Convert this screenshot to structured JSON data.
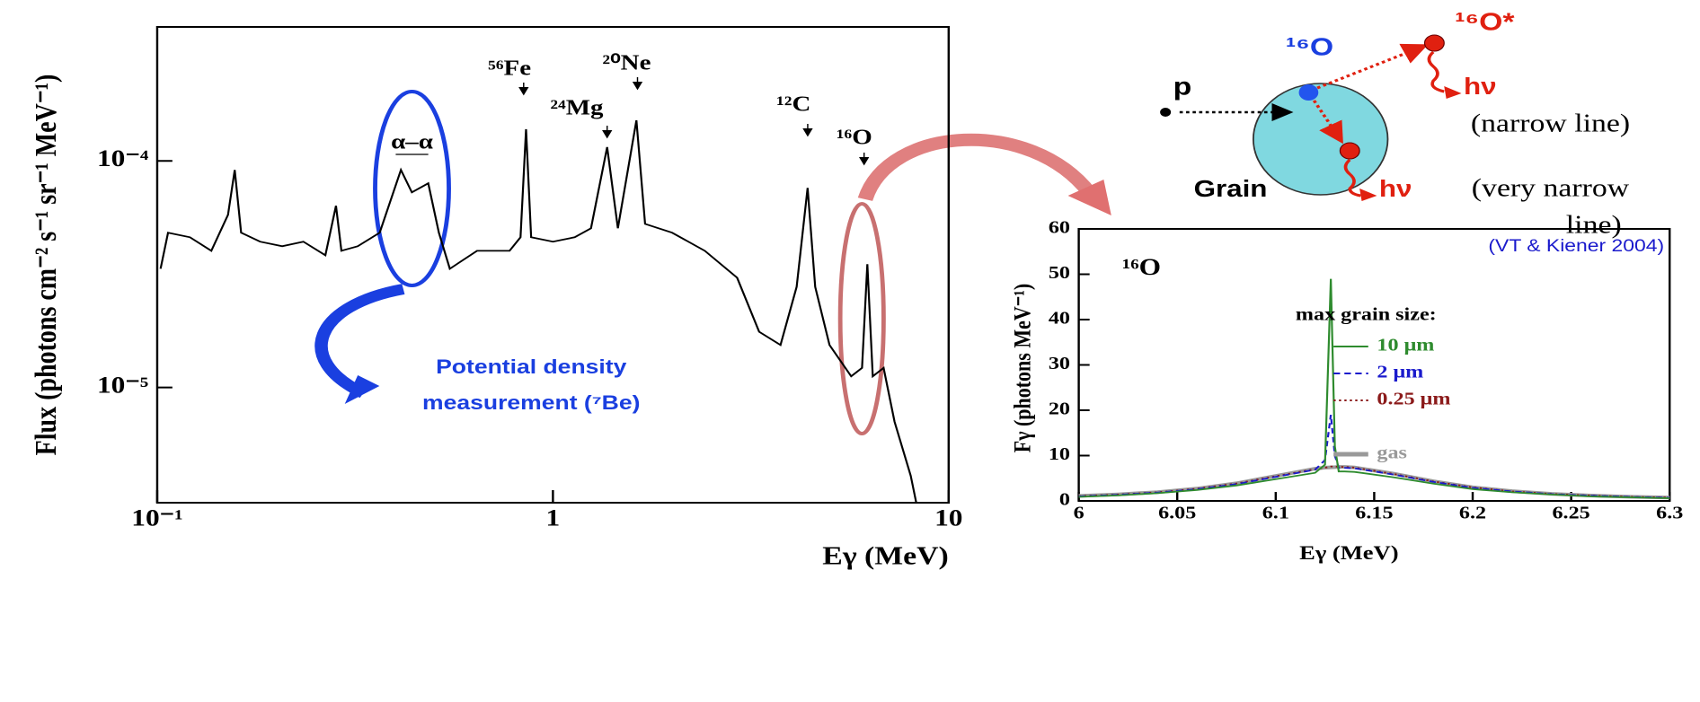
{
  "chart_data": [
    {
      "type": "line",
      "xlog": true,
      "ylog": true,
      "color": "#000000",
      "xlabel": "Eγ (MeV)",
      "ylabel": "Flux (photons cm⁻² s⁻¹ sr⁻¹ MeV⁻¹)",
      "x": [
        0.102,
        0.1065,
        0.121,
        0.137,
        0.151,
        0.157,
        0.163,
        0.182,
        0.207,
        0.234,
        0.266,
        0.283,
        0.292,
        0.321,
        0.365,
        0.413,
        0.44,
        0.484,
        0.515,
        0.549,
        0.643,
        0.777,
        0.828,
        0.855,
        0.881,
        1.0,
        1.135,
        1.248,
        1.371,
        1.459,
        1.625,
        1.709,
        2.0,
        2.42,
        2.92,
        3.32,
        3.76,
        4.13,
        4.4,
        4.6,
        5.0,
        5.67,
        6.04,
        6.23,
        6.43,
        6.85,
        7.3,
        8.02,
        8.28
      ],
      "values": [
        3.34e-05,
        4.82e-05,
        4.6e-05,
        4.01e-05,
        5.78e-05,
        9.12e-05,
        4.82e-05,
        4.4e-05,
        4.2e-05,
        4.4e-05,
        3.83e-05,
        6.34e-05,
        4.01e-05,
        4.2e-05,
        4.82e-05,
        9.12e-05,
        7.26e-05,
        7.96e-05,
        4.82e-05,
        3.34e-05,
        4.01e-05,
        4.01e-05,
        4.6e-05,
        0.000138,
        4.6e-05,
        4.4e-05,
        4.6e-05,
        5.04e-05,
        0.000115,
        5.04e-05,
        0.000151,
        5.27e-05,
        4.82e-05,
        4.01e-05,
        3.05e-05,
        1.76e-05,
        1.54e-05,
        2.78e-05,
        7.6e-05,
        2.78e-05,
        1.54e-05,
        1.12e-05,
        1.22e-05,
        3.5e-05,
        1.12e-05,
        1.22e-05,
        7.06e-06,
        4.08e-06,
        3.1e-06
      ],
      "xlim": [
        0.1,
        10
      ],
      "ylim": [
        3.1e-06,
        0.00039
      ],
      "xticks": [
        {
          "value": 0.1,
          "label": "10⁻¹"
        },
        1,
        10
      ],
      "yticks": [
        {
          "value": 1e-05,
          "label": "10⁻⁵"
        },
        {
          "value": 0.0001,
          "label": "10⁻⁴"
        }
      ],
      "annotations": [
        "⁵⁶Fe",
        "²⁰Ne",
        "²⁴Mg",
        "¹²C",
        "¹⁶O",
        "α–α",
        "Potential density",
        "measurement (⁷Be)"
      ]
    },
    {
      "type": "line",
      "title": "¹⁶O",
      "annotation": "(VT & Kiener 2004)",
      "legend_title": "max grain size:",
      "xlabel": "Eγ (MeV)",
      "ylabel": "Fγ (photons MeV⁻¹)",
      "x": [
        6,
        6.02,
        6.04,
        6.06,
        6.08,
        6.1,
        6.12,
        6.125,
        6.128,
        6.13,
        6.132,
        6.135,
        6.14,
        6.16,
        6.18,
        6.2,
        6.22,
        6.24,
        6.26,
        6.28,
        6.3
      ],
      "series": [
        {
          "name": "10 μm",
          "color": "#2e8b2e",
          "dash": "solid",
          "values": [
            0.9,
            1.2,
            1.7,
            2.4,
            3.4,
            4.8,
            6.2,
            8,
            49,
            12,
            6.5,
            6.5,
            6.4,
            5.2,
            3.8,
            2.6,
            1.9,
            1.4,
            1.0,
            0.8,
            0.6
          ]
        },
        {
          "name": "2 μm",
          "color": "#1a1acc",
          "dash": "dashed",
          "values": [
            1.0,
            1.35,
            1.85,
            2.6,
            3.7,
            5.3,
            6.9,
            9,
            19,
            10,
            7.3,
            7.3,
            7.2,
            5.8,
            4.2,
            2.9,
            2.1,
            1.5,
            1.15,
            0.9,
            0.7
          ]
        },
        {
          "name": "0.25 μm",
          "color": "#8b1a1a",
          "dash": "dotted",
          "values": [
            1.05,
            1.4,
            1.9,
            2.7,
            3.85,
            5.45,
            7.0,
            7.3,
            7.6,
            7.6,
            7.5,
            7.5,
            7.35,
            5.95,
            4.3,
            3.0,
            2.1,
            1.55,
            1.18,
            0.91,
            0.73
          ]
        },
        {
          "name": "gas",
          "color": "#999999",
          "dash": "thick",
          "values": [
            1.1,
            1.44,
            1.94,
            2.72,
            3.89,
            5.51,
            7.1,
            7.35,
            7.4,
            7.45,
            7.5,
            7.5,
            7.38,
            6.0,
            4.33,
            3.0,
            2.15,
            1.57,
            1.19,
            0.92,
            0.74
          ]
        }
      ],
      "xlim": [
        6,
        6.3
      ],
      "ylim": [
        0,
        60
      ],
      "xticks": [
        6,
        6.05,
        6.1,
        6.15,
        6.2,
        6.25,
        6.3
      ],
      "yticks": [
        0,
        10,
        20,
        30,
        40,
        50,
        60
      ]
    }
  ],
  "diagram": {
    "labels": [
      "p",
      "¹⁶O",
      "¹⁶O*",
      "hν",
      "(narrow line)",
      "Grain",
      "hν",
      "(very narrow",
      "line)"
    ]
  }
}
